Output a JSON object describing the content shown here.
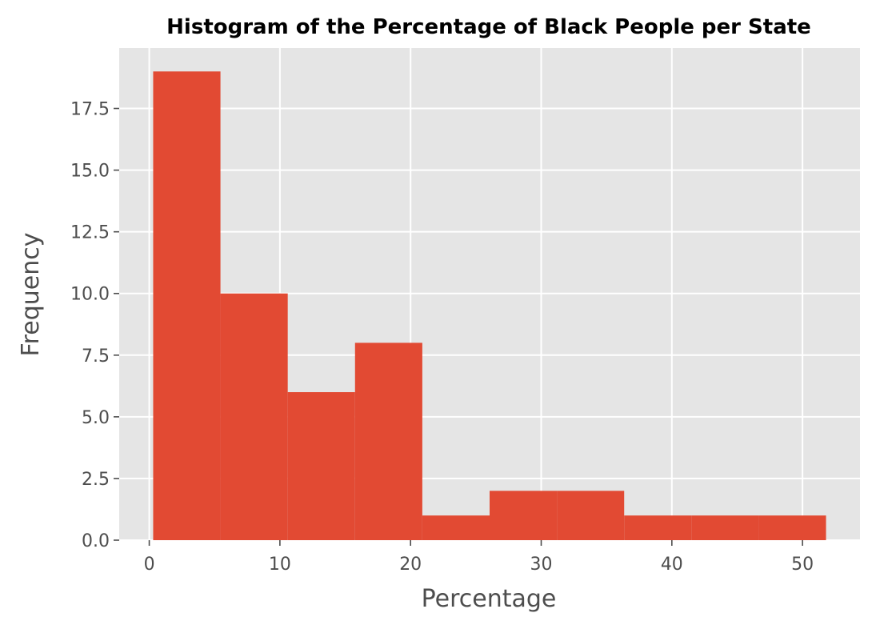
{
  "chart_data": {
    "type": "bar",
    "title": "Histogram of the Percentage of Black People per State",
    "xlabel": "Percentage",
    "ylabel": "Frequency",
    "bin_edges": [
      0.3,
      5.45,
      10.6,
      15.75,
      20.9,
      26.05,
      31.2,
      36.35,
      41.5,
      46.65,
      51.8
    ],
    "values": [
      19,
      10,
      6,
      8,
      1,
      2,
      2,
      1,
      1,
      1
    ],
    "xlim": [
      -2.3,
      54.4
    ],
    "ylim": [
      0,
      19.95
    ],
    "xticks": [
      0,
      10,
      20,
      30,
      40,
      50
    ],
    "xtick_labels": [
      "0",
      "10",
      "20",
      "30",
      "40",
      "50"
    ],
    "yticks": [
      0,
      2.5,
      5,
      7.5,
      10,
      12.5,
      15,
      17.5
    ],
    "ytick_labels": [
      "0.0",
      "2.5",
      "5.0",
      "7.5",
      "10.0",
      "12.5",
      "15.0",
      "17.5"
    ],
    "grid": true,
    "colors": {
      "bar": "#e24a33",
      "background": "#e5e5e5",
      "grid": "#ffffff"
    }
  }
}
